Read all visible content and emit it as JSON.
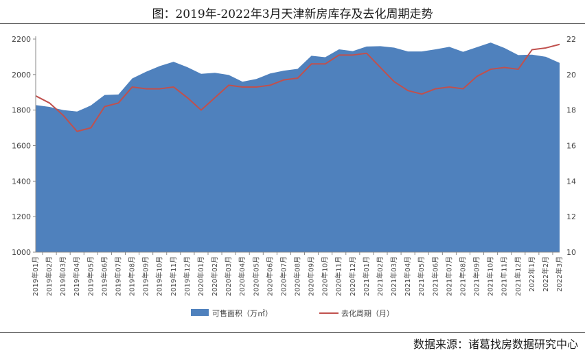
{
  "title": "图：2019年-2022年3月天津新房库存及去化周期走势",
  "source": "数据来源：诸葛找房数据研究中心",
  "chart_data": {
    "type": "area",
    "categories": [
      "2019年01月",
      "2019年02月",
      "2019年03月",
      "2019年04月",
      "2019年05月",
      "2019年06月",
      "2019年07月",
      "2019年08月",
      "2019年09月",
      "2019年10月",
      "2019年11月",
      "2019年12月",
      "2020年01月",
      "2020年02月",
      "2020年03月",
      "2020年04月",
      "2020年05月",
      "2020年06月",
      "2020年07月",
      "2020年08月",
      "2020年09月",
      "2020年10月",
      "2020年11月",
      "2020年12月",
      "2021年01月",
      "2021年02月",
      "2021年03月",
      "2021年04月",
      "2021年05月",
      "2021年06月",
      "2021年07月",
      "2021年08月",
      "2021年09月",
      "2021年10月",
      "2021年11月",
      "2021年12月",
      "2022年1月",
      "2022年2月",
      "2022年3月"
    ],
    "series": [
      {
        "name": "可售面积（万㎡）",
        "type": "area",
        "axis": "left",
        "color": "#4f81bd",
        "values": [
          1828,
          1818,
          1800,
          1792,
          1826,
          1885,
          1888,
          1978,
          2016,
          2048,
          2072,
          2042,
          2004,
          2010,
          1998,
          1960,
          1975,
          2006,
          2022,
          2032,
          2106,
          2098,
          2142,
          2132,
          2158,
          2160,
          2152,
          2130,
          2130,
          2142,
          2156,
          2128,
          2154,
          2180,
          2150,
          2110,
          2112,
          2100,
          2066
        ]
      },
      {
        "name": "去化周期（月）",
        "type": "line",
        "axis": "right",
        "color": "#c0504d",
        "values": [
          18.8,
          18.4,
          17.7,
          16.8,
          17.0,
          18.2,
          18.4,
          19.3,
          19.2,
          19.2,
          19.3,
          18.7,
          18.0,
          18.7,
          19.4,
          19.3,
          19.3,
          19.4,
          19.7,
          19.8,
          20.6,
          20.6,
          21.1,
          21.1,
          21.2,
          20.4,
          19.6,
          19.1,
          18.9,
          19.2,
          19.3,
          19.2,
          19.9,
          20.3,
          20.4,
          20.3,
          21.4,
          21.5,
          21.7
        ]
      }
    ],
    "y_left": {
      "min": 1000,
      "max": 2200,
      "ticks": [
        1000,
        1200,
        1400,
        1600,
        1800,
        2000,
        2200
      ]
    },
    "y_right": {
      "min": 10,
      "max": 22,
      "ticks": [
        10,
        12,
        14,
        16,
        18,
        20,
        22
      ]
    },
    "grid": false,
    "legend_position": "bottom"
  }
}
